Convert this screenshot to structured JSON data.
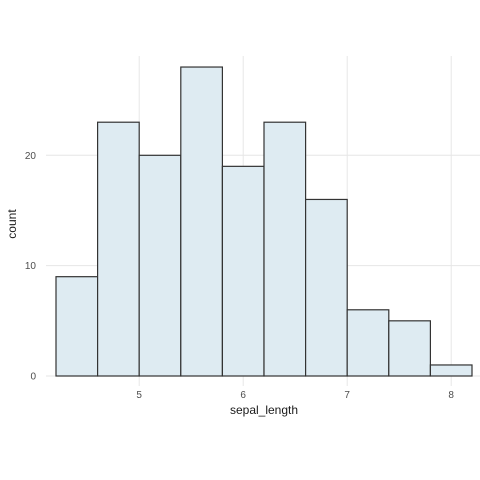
{
  "chart_data": {
    "type": "bar",
    "title": "",
    "xlabel": "sepal_length",
    "ylabel": "count",
    "bin_edges": [
      4.2,
      4.6,
      5.0,
      5.4,
      5.8,
      6.2,
      6.6,
      7.0,
      7.4,
      7.8,
      8.2
    ],
    "values": [
      9,
      23,
      20,
      28,
      19,
      23,
      16,
      6,
      5,
      1
    ],
    "xlim": [
      4.2,
      8.2
    ],
    "ylim": [
      0,
      29
    ],
    "x_ticks": [
      5,
      6,
      7,
      8
    ],
    "y_ticks": [
      0,
      10,
      20
    ],
    "grid": true,
    "legend": false,
    "colors": {
      "bar_fill": "#deebf2",
      "bar_stroke": "#333333",
      "grid": "#e6e6e6"
    }
  }
}
